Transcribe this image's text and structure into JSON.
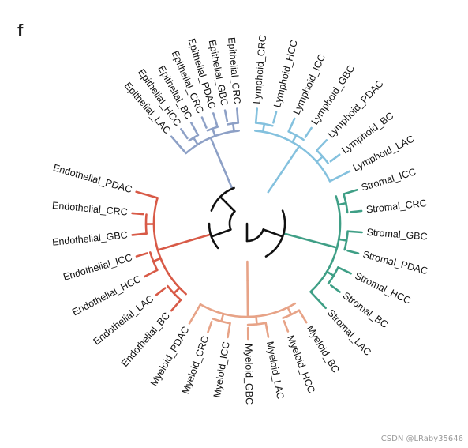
{
  "panel_label": "f",
  "watermark": "CSDN @LRaby35646",
  "colors": {
    "root": "#111111",
    "Epithelial": "#8da0c6",
    "Lymphoid": "#84c1de",
    "Stromal": "#3f9f86",
    "Myeloid": "#e7a387",
    "Endothelial": "#d85a47"
  },
  "groups": [
    {
      "name": "Epithelial",
      "color_key": "Epithelial",
      "leaves": [
        "Epithelial_CRC",
        "Epithelial_GBC",
        "Epithelial_PDAC",
        "Epithelial_CRC",
        "Epithelial_BC",
        "Epithelial_HCC",
        "Epithelial_LAC"
      ]
    },
    {
      "name": "Lymphoid",
      "color_key": "Lymphoid",
      "leaves": [
        "Lymphoid_CRC",
        "Lymphoid_HCC",
        "Lymphoid_ICC",
        "Lymphoid_GBC",
        "Lymphoid_PDAC",
        "Lymphoid_BC",
        "Lymphoid_LAC"
      ]
    },
    {
      "name": "Stromal",
      "color_key": "Stromal",
      "leaves": [
        "Stromal_ICC",
        "Stromal_CRC",
        "Stromal_GBC",
        "Stromal_PDAC",
        "Stromal_HCC",
        "Stromal_BC",
        "Stromal_LAC"
      ]
    },
    {
      "name": "Myeloid",
      "color_key": "Myeloid",
      "leaves": [
        "Myeloid_BC",
        "Myeloid_HCC",
        "Myeloid_LAC",
        "Myeloid_GBC",
        "Myeloid_ICC",
        "Myeloid_CRC",
        "Myeloid_PDAC"
      ]
    },
    {
      "name": "Endothelial",
      "color_key": "Endothelial",
      "leaves": [
        "Endothelial_BC",
        "Endothelial_LAC",
        "Endothelial_HCC",
        "Endothelial_ICC",
        "Endothelial_GBC",
        "Endothelial_CRC",
        "Endothelial_PDAC"
      ]
    }
  ]
}
